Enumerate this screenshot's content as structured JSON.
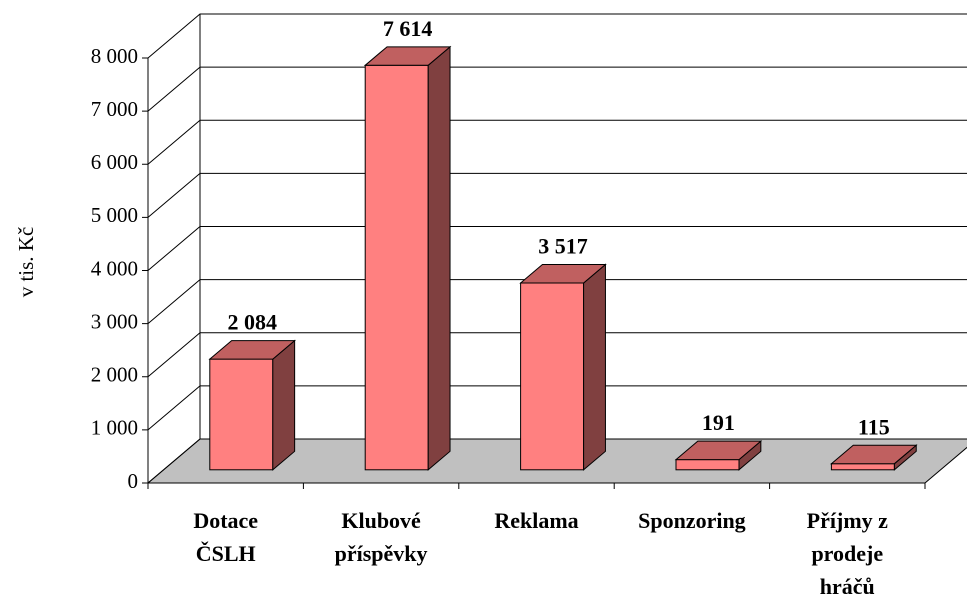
{
  "chart_data": {
    "type": "bar3d",
    "y_label": "v tis. Kč",
    "categories": [
      "Dotace\nČSLH",
      "Klubové\npříspěvky",
      "Reklama",
      "Sponzoring",
      "Příjmy z\nprodeje\nhráčů"
    ],
    "values": [
      2084,
      7614,
      3517,
      191,
      115
    ],
    "value_labels": [
      "2 084",
      "7 614",
      "3 517",
      "191",
      "115"
    ],
    "color": "#ff8080",
    "ylim": [
      0,
      8000
    ],
    "yticks": [
      0,
      {
        "value": 1000,
        "label": "1 000"
      },
      {
        "value": 2000,
        "label": "2 000"
      },
      {
        "value": 3000,
        "label": "3 000"
      },
      {
        "value": 4000,
        "label": "4 000"
      },
      {
        "value": 5000,
        "label": "5 000"
      },
      {
        "value": 6000,
        "label": "6 000"
      },
      {
        "value": 7000,
        "label": "7 000"
      },
      {
        "value": 8000,
        "label": "8 000"
      }
    ],
    "grid": true
  }
}
